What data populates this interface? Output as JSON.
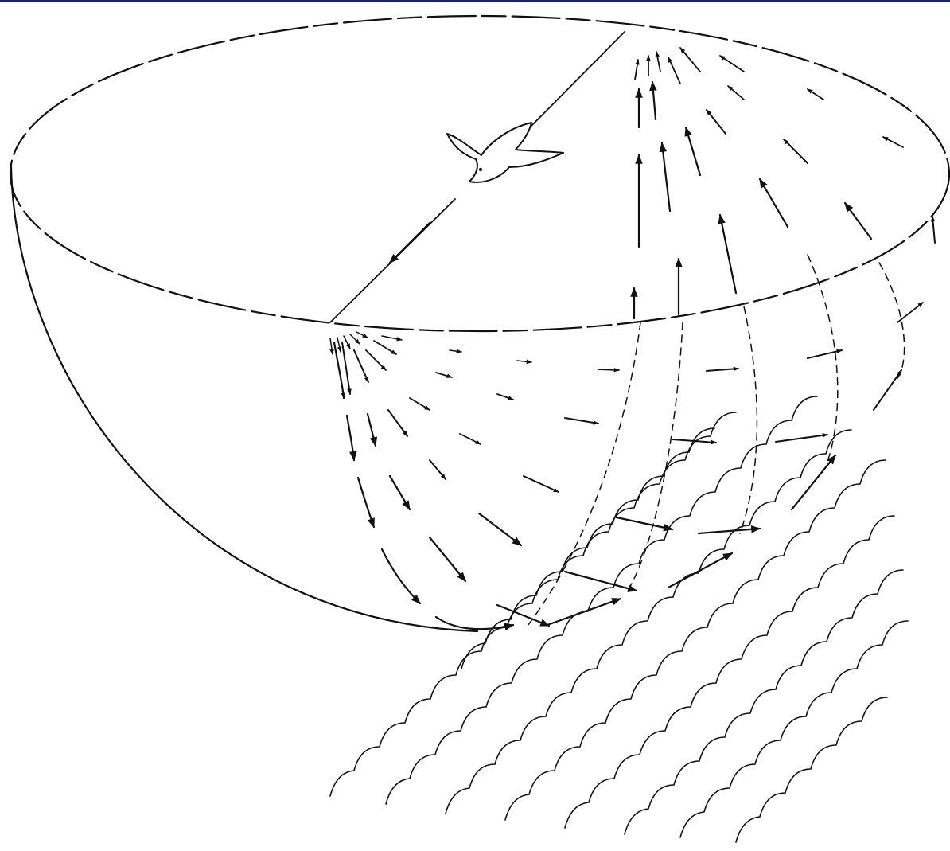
{
  "colors": {
    "ink": "#111111",
    "paper": "#ffffff",
    "top_rule": "#1a1f8c"
  },
  "icons": {
    "bird": "bird-icon"
  }
}
